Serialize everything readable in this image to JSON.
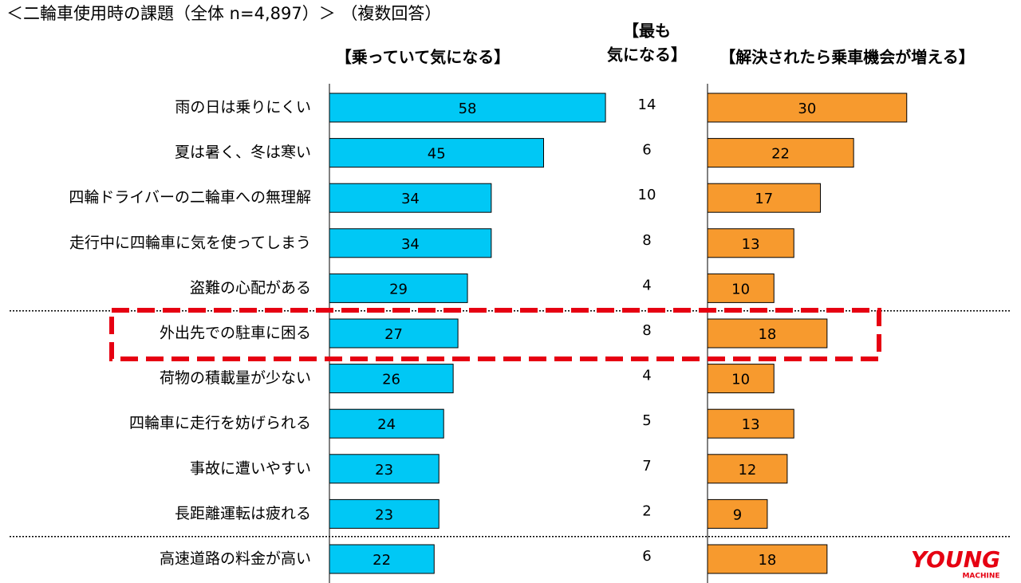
{
  "chart_data": {
    "type": "bar",
    "orientation": "horizontal",
    "title": "＜二輪車使用時の課題（全体 n=4,897）＞ （複数回答）",
    "categories": [
      "雨の日は乗りにくい",
      "夏は暑く、冬は寒い",
      "四輪ドライバーの二輪車への無理解",
      "走行中に四輪車に気を使ってしまう",
      "盗難の心配がある",
      "外出先での駐車に困る",
      "荷物の積載量が少ない",
      "四輪車に走行を妨げられる",
      "事故に遭いやすい",
      "長距離運転は疲れる",
      "高速道路の料金が高い"
    ],
    "series": [
      {
        "name": "【乗っていて気になる】",
        "color": "#00c8f5",
        "display": "bar",
        "xlim": [
          0,
          60
        ],
        "values": [
          58,
          45,
          34,
          34,
          29,
          27,
          26,
          24,
          23,
          23,
          22
        ]
      },
      {
        "name_lines": [
          "【最も",
          "気になる】"
        ],
        "display": "text",
        "values": [
          14,
          6,
          10,
          8,
          4,
          8,
          4,
          5,
          7,
          2,
          6
        ]
      },
      {
        "name": "【解決されたら乗車機会が増える】",
        "color": "#f79a2e",
        "display": "bar",
        "xlim": [
          0,
          40
        ],
        "values": [
          30,
          22,
          17,
          13,
          10,
          18,
          10,
          13,
          12,
          9,
          18
        ]
      }
    ],
    "highlight_index": 5,
    "highlight_color": "#e60012",
    "separators_after": [
      4,
      9
    ],
    "logo": [
      "YOUNG",
      "MACHINE"
    ]
  }
}
